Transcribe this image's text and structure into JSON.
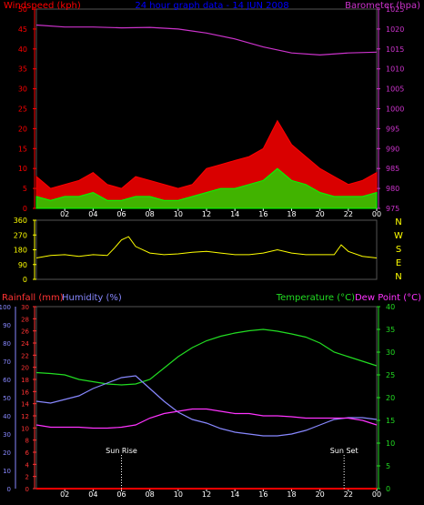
{
  "chart_data": [
    {
      "type": "area",
      "title": "24 hour graph data - 14 JUN 2008",
      "left_label": "Windspeed (kph)",
      "right_label": "Barometer (hpa)",
      "x_ticks": [
        "02",
        "04",
        "06",
        "08",
        "10",
        "12",
        "14",
        "16",
        "18",
        "20",
        "22",
        "00"
      ],
      "left_ticks": [
        "0",
        "5",
        "10",
        "15",
        "20",
        "25",
        "30",
        "35",
        "40",
        "45",
        "50"
      ],
      "right_ticks": [
        "975",
        "980",
        "985",
        "990",
        "995",
        "1000",
        "1005",
        "1010",
        "1015",
        "1020",
        "1025"
      ],
      "xlim": [
        0,
        24
      ],
      "ylim_left": [
        0,
        50
      ],
      "ylim_right": [
        975,
        1025
      ],
      "series": [
        {
          "name": "Windspeed (kph)",
          "color": "#ff0000",
          "x": [
            0,
            1,
            2,
            3,
            4,
            5,
            6,
            7,
            8,
            9,
            10,
            11,
            12,
            13,
            14,
            15,
            16,
            17,
            18,
            19,
            20,
            21,
            22,
            23,
            24
          ],
          "y": [
            8,
            5,
            6,
            7,
            9,
            6,
            5,
            8,
            7,
            6,
            5,
            6,
            10,
            11,
            12,
            13,
            15,
            22,
            16,
            13,
            10,
            8,
            6,
            7,
            9
          ]
        },
        {
          "name": "",
          "color": "#00ff00",
          "x": [
            0,
            1,
            2,
            3,
            4,
            5,
            6,
            7,
            8,
            9,
            10,
            11,
            12,
            13,
            14,
            15,
            16,
            17,
            18,
            19,
            20,
            21,
            22,
            23,
            24
          ],
          "y": [
            3,
            2,
            3,
            3,
            4,
            2,
            2,
            3,
            3,
            2,
            2,
            3,
            4,
            5,
            5,
            6,
            7,
            10,
            7,
            6,
            4,
            3,
            3,
            3,
            4
          ]
        },
        {
          "name": "Barometer (hpa)",
          "color": "#cc33cc",
          "x": [
            0,
            2,
            4,
            6,
            8,
            10,
            12,
            14,
            16,
            18,
            20,
            22,
            24
          ],
          "y": [
            1021,
            1020.5,
            1020.5,
            1020.3,
            1020.4,
            1020,
            1019,
            1017.5,
            1015.5,
            1014,
            1013.5,
            1014,
            1014.2
          ]
        }
      ]
    },
    {
      "type": "line",
      "title": "",
      "left_ticks": [
        "0",
        "90",
        "180",
        "270",
        "360"
      ],
      "right_labels": [
        "N",
        "W",
        "S",
        "E",
        "N"
      ],
      "ylim": [
        0,
        360
      ],
      "xlim": [
        0,
        24
      ],
      "series": [
        {
          "name": "",
          "color": "#ffff00",
          "x": [
            0,
            1,
            2,
            3,
            4,
            5,
            5.5,
            6,
            6.5,
            7,
            8,
            9,
            10,
            11,
            12,
            13,
            14,
            15,
            16,
            17,
            18,
            19,
            20,
            21,
            21.5,
            22,
            23,
            24
          ],
          "y": [
            130,
            145,
            150,
            140,
            150,
            145,
            190,
            240,
            260,
            200,
            160,
            150,
            155,
            165,
            170,
            160,
            150,
            150,
            160,
            180,
            160,
            150,
            150,
            150,
            210,
            170,
            140,
            130
          ]
        }
      ]
    },
    {
      "type": "line",
      "title": "",
      "rainfall_label": "Rainfall (mm)",
      "humidity_label": "Humidity (%)",
      "temperature_label": "Temperature (°C)",
      "dewpoint_label": "Dew Point (°C)",
      "humidity_ticks": [
        "0",
        "10",
        "20",
        "30",
        "40",
        "50",
        "60",
        "70",
        "80",
        "90",
        "100"
      ],
      "rainfall_ticks": [
        "0",
        "2",
        "4",
        "6",
        "8",
        "10",
        "12",
        "14",
        "16",
        "18",
        "20",
        "22",
        "24",
        "26",
        "28",
        "30"
      ],
      "temperature_ticks": [
        "0",
        "5",
        "10",
        "15",
        "20",
        "25",
        "30",
        "35",
        "40"
      ],
      "ylim_humidity": [
        0,
        100
      ],
      "ylim_temperature": [
        0,
        40
      ],
      "xlim": [
        0,
        24
      ],
      "annotations": [
        {
          "text": "Sun Rise",
          "x": 6
        },
        {
          "text": "Sun Set",
          "x": 21.7
        }
      ],
      "series": [
        {
          "name": "Temperature (°C)",
          "color": "#22dd22",
          "x": [
            0,
            1,
            2,
            3,
            4,
            5,
            6,
            7,
            8,
            9,
            10,
            11,
            12,
            13,
            14,
            15,
            16,
            17,
            18,
            19,
            20,
            21,
            22,
            23,
            24
          ],
          "y": [
            25.5,
            25.3,
            25,
            24,
            23.5,
            23,
            22.8,
            23,
            24,
            26.5,
            29,
            31,
            32.5,
            33.5,
            34.2,
            34.7,
            35,
            34.6,
            34,
            33.3,
            32,
            30,
            29,
            28,
            27
          ]
        },
        {
          "name": "Humidity (%)",
          "color": "#8888ff",
          "x": [
            0,
            1,
            2,
            3,
            4,
            5,
            6,
            7,
            8,
            9,
            10,
            11,
            12,
            13,
            14,
            15,
            16,
            17,
            18,
            19,
            20,
            21,
            22,
            23,
            24
          ],
          "y": [
            48,
            47,
            49,
            51,
            55,
            58,
            61,
            62,
            55,
            48,
            42,
            38,
            36,
            33,
            31,
            30,
            29,
            29,
            30,
            32,
            35,
            38,
            39,
            39,
            38
          ]
        },
        {
          "name": "Dew Point (°C)",
          "color": "#ff33ff",
          "x": [
            0,
            1,
            2,
            3,
            4,
            5,
            6,
            7,
            8,
            9,
            10,
            11,
            12,
            13,
            14,
            15,
            16,
            17,
            18,
            19,
            20,
            21,
            22,
            23,
            24
          ],
          "y": [
            14,
            13.5,
            13.5,
            13.5,
            13.3,
            13.3,
            13.5,
            14,
            15.5,
            16.5,
            17,
            17.5,
            17.5,
            17,
            16.5,
            16.5,
            16,
            16,
            15.8,
            15.5,
            15.5,
            15.5,
            15.5,
            15,
            14
          ]
        },
        {
          "name": "Rainfall (mm)",
          "color": "#ff0000",
          "x": [
            0,
            24
          ],
          "y": [
            0,
            0
          ]
        }
      ]
    }
  ],
  "colors": {
    "background": "#000000",
    "title": "#0000ff",
    "wind_axis": "#ff0000",
    "baro_axis": "#cc33cc",
    "gust": "#00ff00",
    "direction": "#ffff00",
    "rain_axis": "#ff3333",
    "humidity_axis": "#8888ff",
    "temp_axis": "#22dd22",
    "dew_axis": "#ff33ff",
    "tick_text": "#ffffff",
    "grid": "#555555"
  }
}
